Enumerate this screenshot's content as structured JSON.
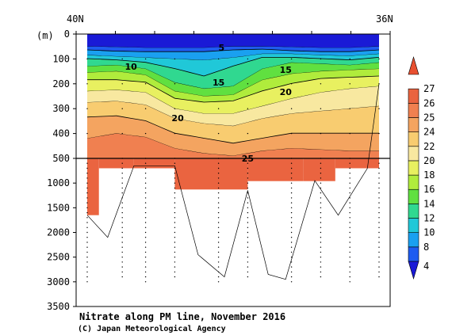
{
  "chart_data": {
    "type": "heatmap",
    "title": "Nitrate along PM line, November 2016",
    "credit": "(C) Japan Meteorological Agency",
    "y_unit": "(m)",
    "x_ticks": {
      "left": "40N",
      "right": "36N"
    },
    "y_ticks_upper": [
      0,
      100,
      200,
      300,
      400,
      500
    ],
    "y_ticks_lower": [
      1000,
      1500,
      2000,
      2500,
      3000,
      3500
    ],
    "y_split_depth": 500,
    "y_max": 3500,
    "colorbar": {
      "levels": [
        4,
        8,
        10,
        12,
        14,
        16,
        18,
        20,
        22,
        24,
        25,
        26,
        27
      ],
      "colors": [
        "#1a1ad6",
        "#1e5cf0",
        "#1aa0f0",
        "#20c8d8",
        "#30d890",
        "#60e040",
        "#b0ec3c",
        "#e8f060",
        "#f8e8a0",
        "#f8cc70",
        "#f4a460",
        "#f08050",
        "#ea6440",
        "#e85030"
      ]
    },
    "contour_labels": [
      "5",
      "10",
      "15",
      "15",
      "20",
      "20",
      "25"
    ],
    "upper_bands": [
      {
        "band": "<8",
        "color": "#1a1ad6",
        "bottom": [
          [
            0,
            50
          ],
          [
            0.1,
            52
          ],
          [
            0.2,
            55
          ],
          [
            0.3,
            55
          ],
          [
            0.4,
            55
          ],
          [
            0.5,
            50
          ],
          [
            0.6,
            50
          ],
          [
            0.7,
            52
          ],
          [
            0.8,
            55
          ],
          [
            0.9,
            55
          ],
          [
            1,
            50
          ]
        ]
      },
      {
        "band": "8-10",
        "color": "#1e5cf0",
        "bottom": [
          [
            0,
            65
          ],
          [
            0.1,
            70
          ],
          [
            0.2,
            72
          ],
          [
            0.3,
            72
          ],
          [
            0.4,
            72
          ],
          [
            0.5,
            65
          ],
          [
            0.6,
            62
          ],
          [
            0.7,
            68
          ],
          [
            0.8,
            72
          ],
          [
            0.9,
            72
          ],
          [
            1,
            65
          ]
        ]
      },
      {
        "band": "10-12",
        "color": "#1aa0f0",
        "bottom": [
          [
            0,
            85
          ],
          [
            0.1,
            90
          ],
          [
            0.2,
            95
          ],
          [
            0.3,
            100
          ],
          [
            0.4,
            105
          ],
          [
            0.5,
            95
          ],
          [
            0.6,
            80
          ],
          [
            0.7,
            80
          ],
          [
            0.8,
            85
          ],
          [
            0.9,
            88
          ],
          [
            1,
            80
          ]
        ]
      },
      {
        "band": "12-14",
        "color": "#20c8d8",
        "bottom": [
          [
            0,
            100
          ],
          [
            0.1,
            105
          ],
          [
            0.2,
            115
          ],
          [
            0.3,
            140
          ],
          [
            0.4,
            170
          ],
          [
            0.5,
            130
          ],
          [
            0.6,
            95
          ],
          [
            0.7,
            95
          ],
          [
            0.8,
            100
          ],
          [
            0.9,
            105
          ],
          [
            1,
            95
          ]
        ]
      },
      {
        "band": "14-16",
        "color": "#30d890",
        "bottom": [
          [
            0,
            130
          ],
          [
            0.1,
            125
          ],
          [
            0.2,
            140
          ],
          [
            0.3,
            195
          ],
          [
            0.4,
            220
          ],
          [
            0.5,
            210
          ],
          [
            0.6,
            140
          ],
          [
            0.7,
            115
          ],
          [
            0.8,
            120
          ],
          [
            0.9,
            125
          ],
          [
            1,
            115
          ]
        ]
      },
      {
        "band": "16-18",
        "color": "#60e040",
        "bottom": [
          [
            0,
            155
          ],
          [
            0.1,
            150
          ],
          [
            0.2,
            165
          ],
          [
            0.3,
            230
          ],
          [
            0.4,
            250
          ],
          [
            0.5,
            245
          ],
          [
            0.6,
            185
          ],
          [
            0.7,
            160
          ],
          [
            0.8,
            150
          ],
          [
            0.9,
            145
          ],
          [
            1,
            140
          ]
        ]
      },
      {
        "band": "18-20",
        "color": "#b0ec3c",
        "bottom": [
          [
            0,
            185
          ],
          [
            0.1,
            185
          ],
          [
            0.2,
            195
          ],
          [
            0.3,
            260
          ],
          [
            0.4,
            275
          ],
          [
            0.5,
            270
          ],
          [
            0.6,
            230
          ],
          [
            0.7,
            200
          ],
          [
            0.8,
            180
          ],
          [
            0.9,
            175
          ],
          [
            1,
            170
          ]
        ]
      },
      {
        "band": "20-22",
        "color": "#e8f060",
        "bottom": [
          [
            0,
            230
          ],
          [
            0.1,
            225
          ],
          [
            0.2,
            235
          ],
          [
            0.3,
            300
          ],
          [
            0.4,
            320
          ],
          [
            0.5,
            320
          ],
          [
            0.6,
            290
          ],
          [
            0.7,
            260
          ],
          [
            0.8,
            235
          ],
          [
            0.9,
            220
          ],
          [
            1,
            210
          ]
        ]
      },
      {
        "band": "22-24",
        "color": "#f8e8a0",
        "bottom": [
          [
            0,
            275
          ],
          [
            0.1,
            270
          ],
          [
            0.2,
            285
          ],
          [
            0.3,
            340
          ],
          [
            0.4,
            360
          ],
          [
            0.5,
            370
          ],
          [
            0.6,
            340
          ],
          [
            0.7,
            320
          ],
          [
            0.8,
            310
          ],
          [
            0.9,
            300
          ],
          [
            1,
            290
          ]
        ]
      },
      {
        "band": "24-25",
        "color": "#f8cc70",
        "bottom": [
          [
            0,
            335
          ],
          [
            0.1,
            330
          ],
          [
            0.2,
            350
          ],
          [
            0.3,
            400
          ],
          [
            0.4,
            420
          ],
          [
            0.5,
            440
          ],
          [
            0.6,
            420
          ],
          [
            0.7,
            400
          ],
          [
            0.8,
            400
          ],
          [
            0.9,
            400
          ],
          [
            1,
            400
          ]
        ]
      },
      {
        "band": "25-26",
        "color": "#f4a460",
        "bottom": [
          [
            0,
            420
          ],
          [
            0.1,
            400
          ],
          [
            0.2,
            415
          ],
          [
            0.3,
            460
          ],
          [
            0.4,
            480
          ],
          [
            0.5,
            490
          ],
          [
            0.6,
            470
          ],
          [
            0.7,
            460
          ],
          [
            0.8,
            465
          ],
          [
            0.9,
            470
          ],
          [
            1,
            470
          ]
        ]
      },
      {
        "band": ">26",
        "color": "#f08050",
        "bottom": [
          [
            0,
            500
          ],
          [
            1,
            500
          ]
        ]
      }
    ],
    "lower_region": {
      "color": "#ea6440",
      "blocks": [
        {
          "x0": 0.0,
          "x1": 0.04,
          "depth": 1650
        },
        {
          "x0": 0.04,
          "x1": 0.16,
          "depth": 700
        },
        {
          "x0": 0.16,
          "x1": 0.3,
          "depth": 700
        },
        {
          "x0": 0.3,
          "x1": 0.55,
          "depth": 1130
        },
        {
          "x0": 0.55,
          "x1": 0.74,
          "depth": 960
        },
        {
          "x0": 0.74,
          "x1": 0.85,
          "depth": 960
        },
        {
          "x0": 0.85,
          "x1": 1.0,
          "depth": 700
        }
      ]
    },
    "bottom_profile": [
      [
        0.0,
        1650
      ],
      [
        0.07,
        2100
      ],
      [
        0.16,
        650
      ],
      [
        0.3,
        650
      ],
      [
        0.38,
        2450
      ],
      [
        0.47,
        2900
      ],
      [
        0.55,
        1150
      ],
      [
        0.62,
        2850
      ],
      [
        0.68,
        2950
      ],
      [
        0.78,
        950
      ],
      [
        0.86,
        1650
      ],
      [
        0.96,
        700
      ],
      [
        1.0,
        200
      ]
    ]
  }
}
